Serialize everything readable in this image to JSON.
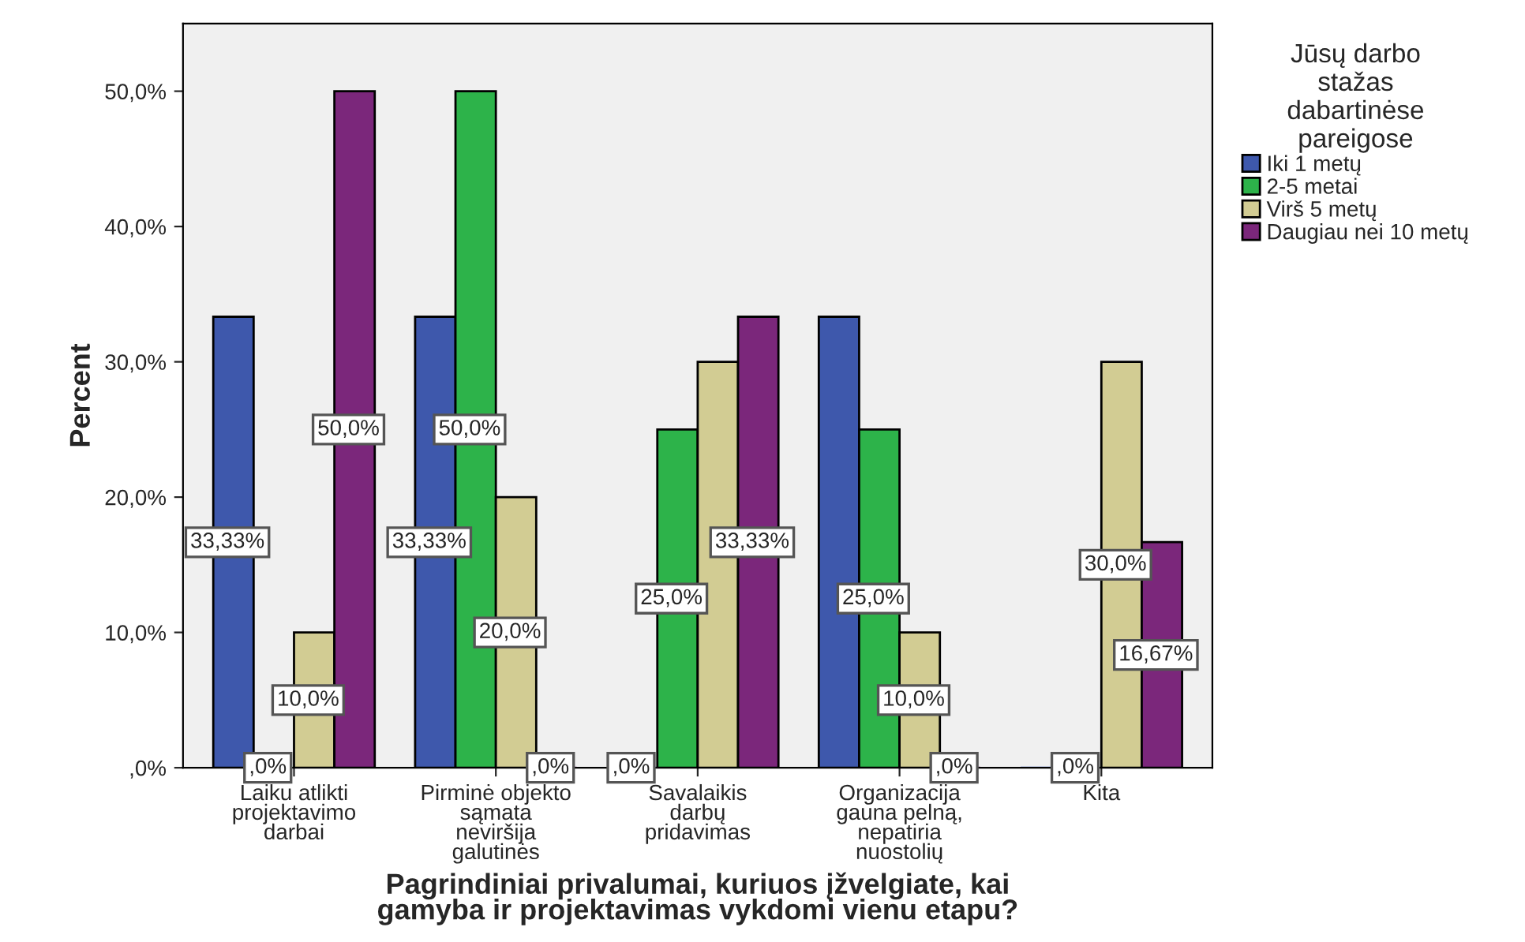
{
  "chart_data": {
    "type": "bar",
    "xlabel": "Pagrindiniai privalumai, kuriuos įžvelgiate, kai\ngamyba ir projektavimas vykdomi vienu etapu?",
    "ylabel": "Percent",
    "legend_title": "Jūsų darbo\nstažas\ndabartinėse\npareigose",
    "legend": "right",
    "categories": [
      "Laiku atlikti\nprojektavimo\ndarbai",
      "Pirminė objekto\nsąmata\nneviršija\ngalutinės",
      "Savalaikis\ndarbų\npridavimas",
      "Organizacija\ngauna pelną,\nnepatiria\nnuostolių",
      "Kita"
    ],
    "ylim": [
      0,
      55
    ],
    "yticks": [
      {
        "value": 0,
        "label": ",0%"
      },
      {
        "value": 10,
        "label": "10,0%"
      },
      {
        "value": 20,
        "label": "20,0%"
      },
      {
        "value": 30,
        "label": "30,0%"
      },
      {
        "value": 40,
        "label": "40,0%"
      },
      {
        "value": 50,
        "label": "50,0%"
      }
    ],
    "series": [
      {
        "name": "Iki 1 metų",
        "color": "#3e58ac",
        "values": [
          33.33,
          33.33,
          0,
          33.33,
          0
        ],
        "value_labels": [
          "33,33%",
          "33,33%",
          ",0%",
          null,
          null
        ]
      },
      {
        "name": "2-5 metai",
        "color": "#2db34a",
        "values": [
          0,
          50,
          25,
          25,
          0
        ],
        "value_labels": [
          ",0%",
          "50,0%",
          "25,0%",
          "25,0%",
          ",0%"
        ]
      },
      {
        "name": "Virš 5 metų",
        "color": "#d2cc93",
        "values": [
          10,
          20,
          30,
          10,
          30
        ],
        "value_labels": [
          "10,0%",
          "20,0%",
          null,
          "10,0%",
          "30,0%"
        ]
      },
      {
        "name": "Daugiau nei 10 metų",
        "color": "#7b277b",
        "values": [
          50,
          0,
          33.33,
          0,
          16.67
        ],
        "value_labels": [
          "50,0%",
          ",0%",
          "33,33%",
          ",0%",
          "16,67%"
        ]
      }
    ]
  }
}
